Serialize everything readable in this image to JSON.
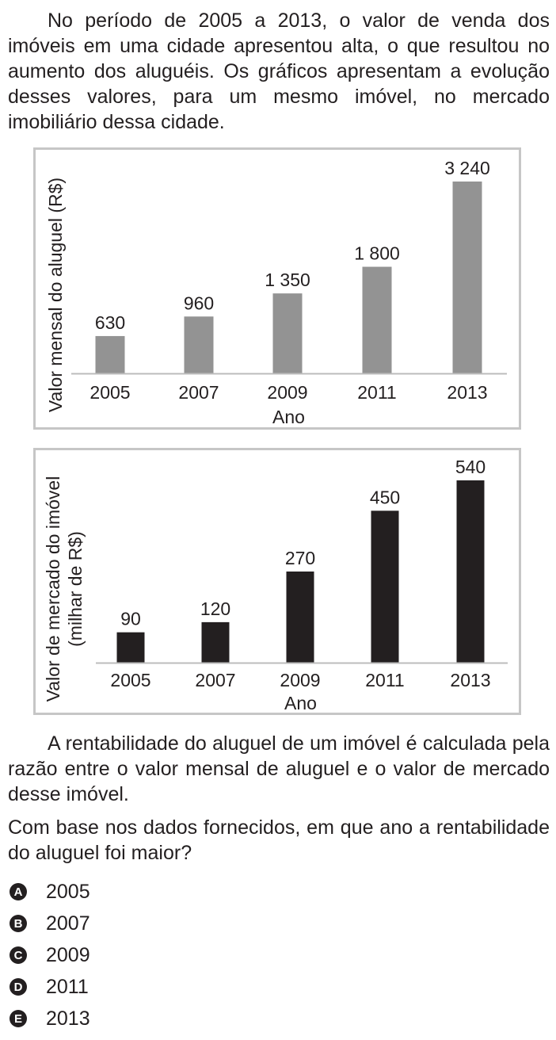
{
  "question": {
    "intro": "No período de 2005 a 2013, o valor de venda dos imóveis em uma cidade apresentou alta, o que resultou no aumento dos aluguéis. Os gráficos apresentam a evolução desses valores, para um mesmo imóvel, no mercado imobiliário dessa cidade.",
    "definition": "A rentabilidade do aluguel de um imóvel é calculada pela razão entre o valor mensal de aluguel e o valor de mercado desse imóvel.",
    "prompt": "Com base nos dados fornecidos, em que ano a rentabilidade do aluguel foi maior?"
  },
  "chart_data": [
    {
      "type": "bar",
      "categories": [
        "2005",
        "2007",
        "2009",
        "2011",
        "2013"
      ],
      "values": [
        630,
        960,
        1350,
        1800,
        3240
      ],
      "value_labels": [
        "630",
        "960",
        "1 350",
        "1 800",
        "3 240"
      ],
      "xlabel": "Ano",
      "ylabel": "Valor mensal do aluguel (R$)",
      "ylim": [
        0,
        3240
      ],
      "bar_color": "#939393",
      "grid": false
    },
    {
      "type": "bar",
      "categories": [
        "2005",
        "2007",
        "2009",
        "2011",
        "2013"
      ],
      "values": [
        90,
        120,
        270,
        450,
        540
      ],
      "value_labels": [
        "90",
        "120",
        "270",
        "450",
        "540"
      ],
      "xlabel": "Ano",
      "ylabel": [
        "Valor de mercado do imóvel",
        "(milhar de R$)"
      ],
      "ylim": [
        0,
        540
      ],
      "bar_color": "#231f20",
      "grid": false
    }
  ],
  "options": [
    {
      "letter": "A",
      "text": "2005"
    },
    {
      "letter": "B",
      "text": "2007"
    },
    {
      "letter": "C",
      "text": "2009"
    },
    {
      "letter": "D",
      "text": "2011"
    },
    {
      "letter": "E",
      "text": "2013"
    }
  ]
}
